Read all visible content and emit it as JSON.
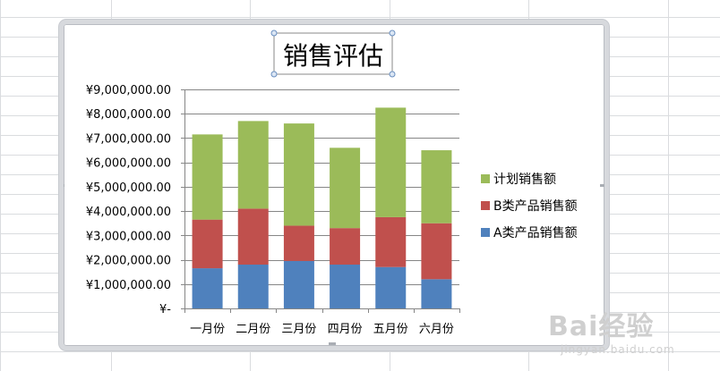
{
  "chart_data": {
    "type": "bar",
    "stacked": true,
    "title": "销售评估",
    "xlabel": "",
    "ylabel": "",
    "categories": [
      "一月份",
      "二月份",
      "三月份",
      "四月份",
      "五月份",
      "六月份"
    ],
    "series": [
      {
        "name": "A类产品销售额",
        "color": "#4f81bd",
        "values": [
          1650000,
          1800000,
          1950000,
          1800000,
          1700000,
          1200000
        ]
      },
      {
        "name": "B类产品销售额",
        "color": "#c0504d",
        "values": [
          2000000,
          2300000,
          1450000,
          1500000,
          2050000,
          2300000
        ]
      },
      {
        "name": "计划销售额",
        "color": "#9bbb59",
        "values": [
          3500000,
          3600000,
          4200000,
          3300000,
          4500000,
          3000000
        ]
      }
    ],
    "ylim": [
      0,
      9000000
    ],
    "ytick_step": 1000000,
    "ytick_labels": [
      "¥-",
      "¥1,000,000.00",
      "¥2,000,000.00",
      "¥3,000,000.00",
      "¥4,000,000.00",
      "¥5,000,000.00",
      "¥6,000,000.00",
      "¥7,000,000.00",
      "¥8,000,000.00",
      "¥9,000,000.00"
    ],
    "grid": true,
    "legend": "right",
    "legend_order": [
      "计划销售额",
      "B类产品销售额",
      "A类产品销售额"
    ]
  },
  "watermark": {
    "main": "Bai经验",
    "sub": "jingyan.baidu.com"
  }
}
